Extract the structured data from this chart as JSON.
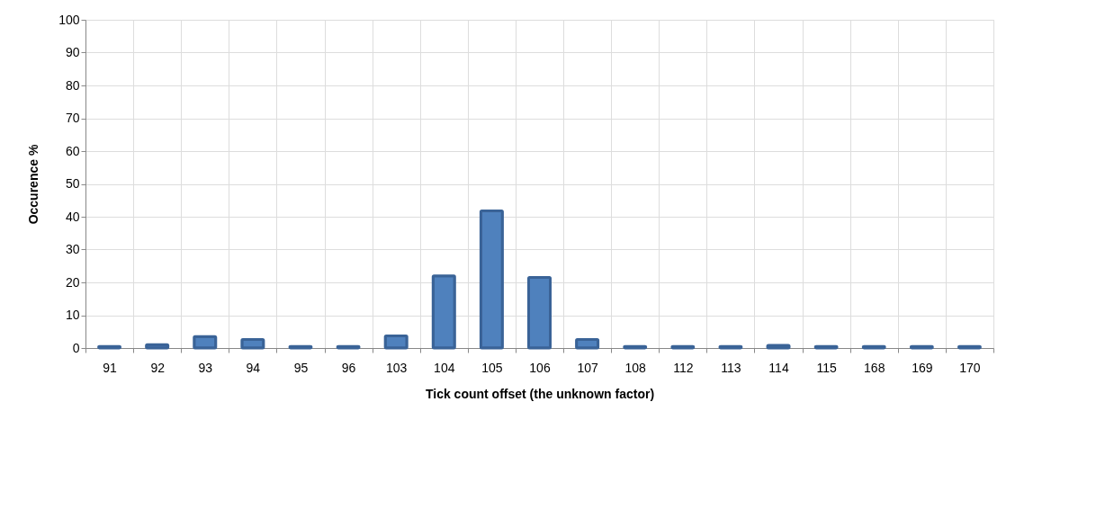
{
  "chart_data": {
    "type": "bar",
    "xlabel": "Tick count offset (the unknown factor)",
    "ylabel": "Occurence %",
    "categories": [
      "91",
      "92",
      "93",
      "94",
      "95",
      "96",
      "103",
      "104",
      "105",
      "106",
      "107",
      "108",
      "112",
      "113",
      "114",
      "115",
      "168",
      "169",
      "170"
    ],
    "series": [
      {
        "color": "#4f81bd",
        "values": [
          0.5,
          1,
          3.5,
          2.6,
          0.5,
          0.5,
          3.7,
          22,
          41.8,
          21.5,
          2.6,
          0.5,
          0.5,
          0.5,
          0.8,
          0.5,
          0.5,
          0.5,
          0.5
        ]
      }
    ],
    "ylim": [
      0,
      100
    ],
    "yticks": [
      0,
      10,
      20,
      30,
      40,
      50,
      60,
      70,
      80,
      90,
      100
    ],
    "grid": true
  }
}
